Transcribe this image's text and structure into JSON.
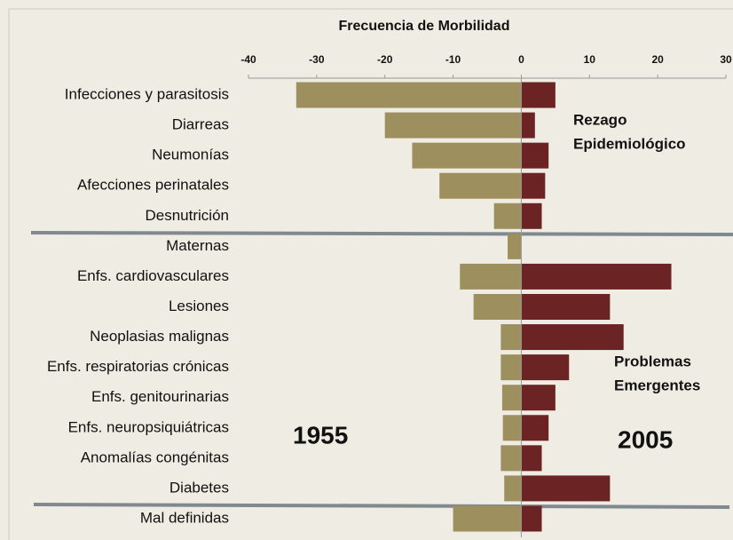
{
  "chart_data": {
    "type": "bar",
    "orientation": "horizontal",
    "title": "Frecuencia de Morbilidad",
    "categories": [
      "Infecciones y parasitosis",
      "Diarreas",
      "Neumonías",
      "Afecciones perinatales",
      "Desnutrición",
      "Maternas",
      "Enfs. cardiovasculares",
      "Lesiones",
      "Neoplasias malignas",
      "Enfs. respiratorias crónicas",
      "Enfs. genitourinarias",
      "Enfs. neuropsiquiátricas",
      "Anomalías congénitas",
      "Diabetes",
      "Mal definidas"
    ],
    "series": [
      {
        "name": "1955",
        "color": "#9e8f5e",
        "values": [
          -33,
          -20,
          -16,
          -12,
          -4,
          -2,
          -9,
          -7,
          -3,
          -3,
          -2.8,
          -2.7,
          -3,
          -2.5,
          -10
        ]
      },
      {
        "name": "2005",
        "color": "#6b2323",
        "values": [
          5,
          2,
          4,
          3.5,
          3,
          0,
          22,
          13,
          15,
          7,
          5,
          4,
          3,
          13,
          3
        ]
      }
    ],
    "xlim": [
      -40,
      30
    ],
    "xticks": [
      -40,
      -30,
      -20,
      -10,
      0,
      10,
      20,
      30
    ],
    "annotations": [
      [
        "Rezago",
        "Epidemiológico"
      ],
      [
        "Problemas",
        "Emergentes"
      ]
    ]
  }
}
